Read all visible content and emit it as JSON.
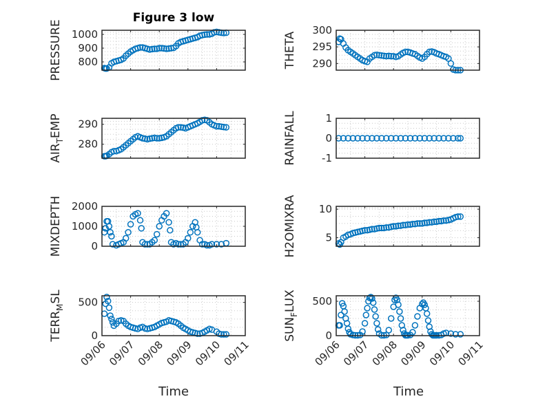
{
  "figure": {
    "title": "Figure 3 low",
    "xlabel": "Time"
  },
  "chart_data": [
    {
      "type": "scatter",
      "ylabel": "PRESSURE",
      "xlim": [
        "09/06 00:00",
        "09/11 00:00"
      ],
      "xticks": [
        "09/06",
        "09/07",
        "09/08",
        "09/09",
        "09/10",
        "09/11"
      ],
      "yticks": [
        "800",
        "900",
        "1000"
      ],
      "ylim": [
        740,
        1030
      ],
      "x": [
        "09/06 02:00",
        "09/06 03:00",
        "09/06 04:00",
        "09/06 06:00",
        "09/06 08:00",
        "09/06 10:00",
        "09/06 12:00",
        "09/06 14:00",
        "09/06 16:00",
        "09/06 18:00",
        "09/06 20:00",
        "09/06 22:00",
        "09/07 00:00",
        "09/07 02:00",
        "09/07 04:00",
        "09/07 06:00",
        "09/07 08:00",
        "09/07 10:00",
        "09/07 12:00",
        "09/07 14:00",
        "09/07 16:00",
        "09/07 18:00",
        "09/07 20:00",
        "09/07 22:00",
        "09/08 00:00",
        "09/08 02:00",
        "09/08 04:00",
        "09/08 06:00",
        "09/08 08:00",
        "09/08 10:00",
        "09/08 12:00",
        "09/08 14:00",
        "09/08 16:00",
        "09/08 18:00",
        "09/08 20:00",
        "09/08 22:00",
        "09/09 00:00",
        "09/09 02:00",
        "09/09 04:00",
        "09/09 06:00",
        "09/09 08:00",
        "09/09 10:00",
        "09/09 12:00",
        "09/09 14:00",
        "09/09 16:00",
        "09/09 18:00",
        "09/09 20:00",
        "09/09 22:00",
        "09/10 00:00",
        "09/10 02:00",
        "09/10 04:00",
        "09/10 06:00",
        "09/10 08:00"
      ],
      "y": [
        755,
        752,
        752,
        760,
        790,
        800,
        805,
        810,
        815,
        825,
        845,
        860,
        875,
        885,
        895,
        900,
        905,
        905,
        900,
        895,
        890,
        893,
        895,
        895,
        900,
        900,
        898,
        895,
        897,
        900,
        902,
        915,
        935,
        945,
        950,
        955,
        960,
        965,
        970,
        975,
        980,
        990,
        995,
        998,
        1000,
        1000,
        1005,
        1015,
        1018,
        1015,
        1012,
        1010,
        1012
      ]
    },
    {
      "type": "scatter",
      "ylabel": "THETA",
      "xlim": [
        "09/06 00:00",
        "09/11 00:00"
      ],
      "xticks": [
        "09/06",
        "09/07",
        "09/08",
        "09/09",
        "09/10",
        "09/11"
      ],
      "yticks": [
        "290",
        "295",
        "300"
      ],
      "ylim": [
        288,
        300
      ],
      "x": [
        "09/06 02:00",
        "09/06 03:00",
        "09/06 04:00",
        "09/06 06:00",
        "09/06 08:00",
        "09/06 10:00",
        "09/06 12:00",
        "09/06 14:00",
        "09/06 16:00",
        "09/06 18:00",
        "09/06 20:00",
        "09/06 22:00",
        "09/07 00:00",
        "09/07 02:00",
        "09/07 04:00",
        "09/07 06:00",
        "09/07 08:00",
        "09/07 10:00",
        "09/07 12:00",
        "09/07 14:00",
        "09/07 16:00",
        "09/07 18:00",
        "09/07 20:00",
        "09/07 22:00",
        "09/08 00:00",
        "09/08 02:00",
        "09/08 04:00",
        "09/08 06:00",
        "09/08 08:00",
        "09/08 10:00",
        "09/08 12:00",
        "09/08 14:00",
        "09/08 16:00",
        "09/08 18:00",
        "09/08 20:00",
        "09/08 22:00",
        "09/09 00:00",
        "09/09 02:00",
        "09/09 04:00",
        "09/09 06:00",
        "09/09 08:00",
        "09/09 10:00",
        "09/09 12:00",
        "09/09 14:00",
        "09/09 16:00",
        "09/09 18:00",
        "09/09 20:00",
        "09/09 22:00",
        "09/10 00:00",
        "09/10 02:00",
        "09/10 04:00",
        "09/10 06:00",
        "09/10 08:00"
      ],
      "y": [
        296.5,
        297.5,
        297.3,
        296.0,
        294.8,
        294.0,
        293.5,
        293.0,
        292.5,
        292.0,
        291.5,
        291.0,
        290.7,
        290.5,
        291.5,
        292.0,
        292.5,
        292.6,
        292.5,
        292.4,
        292.3,
        292.2,
        292.3,
        292.2,
        292.2,
        292.0,
        292.2,
        292.7,
        293.2,
        293.5,
        293.5,
        293.3,
        293.0,
        292.8,
        292.3,
        291.8,
        291.5,
        292.0,
        292.8,
        293.5,
        293.6,
        293.4,
        293.0,
        292.8,
        292.5,
        292.2,
        292.0,
        291.5,
        290.0,
        288.2,
        288.0,
        288.0,
        288.0
      ]
    },
    {
      "type": "scatter",
      "ylabel": "AIR_TEMP",
      "ylabel_main": "AIR",
      "ylabel_sub": "T",
      "ylabel_rest": "EMP",
      "xlim": [
        "09/06 00:00",
        "09/11 00:00"
      ],
      "xticks": [
        "09/06",
        "09/07",
        "09/08",
        "09/09",
        "09/10",
        "09/11"
      ],
      "yticks": [
        "280",
        "290"
      ],
      "ylim": [
        273,
        293
      ],
      "x": [
        "09/06 02:00",
        "09/06 03:00",
        "09/06 04:00",
        "09/06 06:00",
        "09/06 08:00",
        "09/06 10:00",
        "09/06 12:00",
        "09/06 14:00",
        "09/06 16:00",
        "09/06 18:00",
        "09/06 20:00",
        "09/06 22:00",
        "09/07 00:00",
        "09/07 02:00",
        "09/07 04:00",
        "09/07 06:00",
        "09/07 08:00",
        "09/07 10:00",
        "09/07 12:00",
        "09/07 14:00",
        "09/07 16:00",
        "09/07 18:00",
        "09/07 20:00",
        "09/07 22:00",
        "09/08 00:00",
        "09/08 02:00",
        "09/08 04:00",
        "09/08 06:00",
        "09/08 08:00",
        "09/08 10:00",
        "09/08 12:00",
        "09/08 14:00",
        "09/08 16:00",
        "09/08 18:00",
        "09/08 20:00",
        "09/08 22:00",
        "09/09 00:00",
        "09/09 02:00",
        "09/09 04:00",
        "09/09 06:00",
        "09/09 08:00",
        "09/09 10:00",
        "09/09 12:00",
        "09/09 14:00",
        "09/09 16:00",
        "09/09 18:00",
        "09/09 20:00",
        "09/09 22:00",
        "09/10 00:00",
        "09/10 02:00",
        "09/10 04:00",
        "09/10 06:00",
        "09/10 08:00"
      ],
      "y": [
        274,
        274,
        274.2,
        275,
        276,
        276.5,
        276.5,
        277,
        277.5,
        278.5,
        279.5,
        280.5,
        281.5,
        282.5,
        283.5,
        284,
        283.5,
        283,
        282.8,
        282.5,
        282.8,
        283,
        283.2,
        283,
        283,
        283.2,
        283.5,
        284,
        285,
        286,
        287,
        288,
        288.5,
        288.5,
        288.3,
        288,
        288.5,
        289,
        289.5,
        290,
        290.5,
        291.2,
        292,
        292.2,
        292,
        291,
        290,
        289.5,
        289,
        289,
        288.8,
        288.6,
        288.5
      ]
    },
    {
      "type": "scatter",
      "ylabel": "RAINFALL",
      "xlim": [
        "09/06 00:00",
        "09/11 00:00"
      ],
      "xticks": [
        "09/06",
        "09/07",
        "09/08",
        "09/09",
        "09/10",
        "09/11"
      ],
      "yticks": [
        "-1",
        "0",
        "1"
      ],
      "ylim": [
        -1,
        1
      ],
      "x": [
        "09/06 02:00",
        "09/06 06:00",
        "09/06 10:00",
        "09/06 14:00",
        "09/06 18:00",
        "09/06 22:00",
        "09/07 02:00",
        "09/07 06:00",
        "09/07 10:00",
        "09/07 14:00",
        "09/07 18:00",
        "09/07 22:00",
        "09/08 02:00",
        "09/08 06:00",
        "09/08 10:00",
        "09/08 14:00",
        "09/08 18:00",
        "09/08 22:00",
        "09/09 02:00",
        "09/09 06:00",
        "09/09 10:00",
        "09/09 14:00",
        "09/09 18:00",
        "09/09 22:00",
        "09/10 02:00",
        "09/10 06:00",
        "09/10 08:00"
      ],
      "y": [
        0,
        0,
        0,
        0,
        0,
        0,
        0,
        0,
        0,
        0,
        0,
        0,
        0,
        0,
        0,
        0,
        0,
        0,
        0,
        0,
        0,
        0,
        0,
        0,
        0,
        0,
        0
      ]
    },
    {
      "type": "scatter",
      "ylabel": "MIXDEPTH",
      "xlim": [
        "09/06 00:00",
        "09/11 00:00"
      ],
      "xticks": [
        "09/06",
        "09/07",
        "09/08",
        "09/09",
        "09/10",
        "09/11"
      ],
      "yticks": [
        "0",
        "1000",
        "2000"
      ],
      "ylim": [
        0,
        2000
      ],
      "x": [
        "09/06 02:00",
        "09/06 03:00",
        "09/06 04:00",
        "09/06 05:00",
        "09/06 06:00",
        "09/06 07:00",
        "09/06 08:00",
        "09/06 09:00",
        "09/06 12:00",
        "09/06 14:00",
        "09/06 16:00",
        "09/06 18:00",
        "09/06 20:00",
        "09/06 22:00",
        "09/07 00:00",
        "09/07 02:00",
        "09/07 04:00",
        "09/07 06:00",
        "09/07 08:00",
        "09/07 09:00",
        "09/07 10:00",
        "09/07 12:00",
        "09/07 14:00",
        "09/07 16:00",
        "09/07 18:00",
        "09/07 20:00",
        "09/07 22:00",
        "09/08 00:00",
        "09/08 02:00",
        "09/08 04:00",
        "09/08 06:00",
        "09/08 08:00",
        "09/08 09:00",
        "09/08 10:00",
        "09/08 12:00",
        "09/08 14:00",
        "09/08 16:00",
        "09/08 18:00",
        "09/08 20:00",
        "09/08 22:00",
        "09/09 00:00",
        "09/09 02:00",
        "09/09 04:00",
        "09/09 06:00",
        "09/09 07:00",
        "09/09 08:00",
        "09/09 10:00",
        "09/09 12:00",
        "09/09 14:00",
        "09/09 16:00",
        "09/09 18:00",
        "09/09 20:00",
        "09/10 00:00",
        "09/10 04:00",
        "09/10 08:00"
      ],
      "y": [
        700,
        900,
        1250,
        1250,
        1000,
        700,
        500,
        100,
        50,
        100,
        150,
        200,
        400,
        700,
        1100,
        1500,
        1600,
        1650,
        1300,
        900,
        200,
        100,
        100,
        100,
        200,
        300,
        600,
        1000,
        1300,
        1500,
        1650,
        1200,
        800,
        200,
        100,
        150,
        100,
        100,
        100,
        200,
        400,
        700,
        1000,
        1200,
        950,
        700,
        300,
        100,
        100,
        50,
        50,
        100,
        100,
        100,
        150
      ]
    },
    {
      "type": "scatter",
      "ylabel": "H2OMIXRA",
      "xlim": [
        "09/06 00:00",
        "09/11 00:00"
      ],
      "xticks": [
        "09/06",
        "09/07",
        "09/08",
        "09/09",
        "09/10",
        "09/11"
      ],
      "yticks": [
        "5",
        "10"
      ],
      "ylim": [
        3.5,
        10.5
      ],
      "x": [
        "09/06 02:00",
        "09/06 03:00",
        "09/06 04:00",
        "09/06 06:00",
        "09/06 08:00",
        "09/06 10:00",
        "09/06 12:00",
        "09/06 14:00",
        "09/06 16:00",
        "09/06 18:00",
        "09/06 20:00",
        "09/06 22:00",
        "09/07 00:00",
        "09/07 02:00",
        "09/07 04:00",
        "09/07 06:00",
        "09/07 08:00",
        "09/07 10:00",
        "09/07 12:00",
        "09/07 14:00",
        "09/07 16:00",
        "09/07 18:00",
        "09/07 20:00",
        "09/07 22:00",
        "09/08 00:00",
        "09/08 02:00",
        "09/08 04:00",
        "09/08 06:00",
        "09/08 08:00",
        "09/08 10:00",
        "09/08 12:00",
        "09/08 14:00",
        "09/08 16:00",
        "09/08 18:00",
        "09/08 20:00",
        "09/08 22:00",
        "09/09 00:00",
        "09/09 02:00",
        "09/09 04:00",
        "09/09 06:00",
        "09/09 08:00",
        "09/09 10:00",
        "09/09 12:00",
        "09/09 14:00",
        "09/09 16:00",
        "09/09 18:00",
        "09/09 20:00",
        "09/09 22:00",
        "09/10 00:00",
        "09/10 02:00",
        "09/10 04:00",
        "09/10 06:00",
        "09/10 08:00"
      ],
      "y": [
        4.0,
        3.8,
        4.2,
        5.0,
        5.2,
        5.5,
        5.6,
        5.8,
        5.9,
        6.0,
        6.1,
        6.2,
        6.3,
        6.3,
        6.4,
        6.5,
        6.5,
        6.6,
        6.7,
        6.7,
        6.7,
        6.8,
        6.8,
        6.9,
        7.0,
        7.0,
        7.1,
        7.1,
        7.2,
        7.2,
        7.3,
        7.3,
        7.4,
        7.4,
        7.5,
        7.5,
        7.5,
        7.6,
        7.6,
        7.7,
        7.7,
        7.8,
        7.8,
        7.9,
        7.9,
        8.0,
        8.0,
        8.1,
        8.2,
        8.4,
        8.6,
        8.7,
        8.7
      ]
    },
    {
      "type": "scatter",
      "ylabel": "TERR_MSL",
      "ylabel_main": "TERR",
      "ylabel_sub": "M",
      "ylabel_rest": "SL",
      "xlim": [
        "09/06 00:00",
        "09/11 00:00"
      ],
      "xticks": [
        "09/06",
        "09/07",
        "09/08",
        "09/09",
        "09/10",
        "09/11"
      ],
      "yticks": [
        "0",
        "500"
      ],
      "ylim": [
        0,
        600
      ],
      "x": [
        "09/06 02:00",
        "09/06 03:00",
        "09/06 04:00",
        "09/06 05:00",
        "09/06 06:00",
        "09/06 07:00",
        "09/06 08:00",
        "09/06 09:00",
        "09/06 10:00",
        "09/06 12:00",
        "09/06 14:00",
        "09/06 16:00",
        "09/06 18:00",
        "09/06 20:00",
        "09/06 22:00",
        "09/07 00:00",
        "09/07 02:00",
        "09/07 04:00",
        "09/07 06:00",
        "09/07 08:00",
        "09/07 10:00",
        "09/07 12:00",
        "09/07 14:00",
        "09/07 16:00",
        "09/07 18:00",
        "09/07 20:00",
        "09/07 22:00",
        "09/08 00:00",
        "09/08 02:00",
        "09/08 04:00",
        "09/08 06:00",
        "09/08 08:00",
        "09/08 10:00",
        "09/08 12:00",
        "09/08 14:00",
        "09/08 16:00",
        "09/08 18:00",
        "09/08 20:00",
        "09/08 22:00",
        "09/09 00:00",
        "09/09 02:00",
        "09/09 04:00",
        "09/09 06:00",
        "09/09 08:00",
        "09/09 10:00",
        "09/09 12:00",
        "09/09 14:00",
        "09/09 16:00",
        "09/09 18:00",
        "09/09 20:00",
        "09/10 00:00",
        "09/10 02:00",
        "09/10 04:00",
        "09/10 06:00",
        "09/10 08:00"
      ],
      "y": [
        330,
        480,
        580,
        520,
        420,
        300,
        250,
        200,
        150,
        180,
        220,
        230,
        220,
        180,
        150,
        130,
        120,
        110,
        100,
        120,
        130,
        110,
        100,
        110,
        120,
        130,
        150,
        170,
        190,
        200,
        210,
        230,
        220,
        210,
        200,
        180,
        150,
        120,
        100,
        80,
        60,
        50,
        40,
        30,
        30,
        40,
        60,
        80,
        100,
        90,
        60,
        30,
        20,
        20,
        20
      ]
    },
    {
      "type": "scatter",
      "ylabel": "SUN_FLUX",
      "ylabel_main": "SUN",
      "ylabel_sub": "F",
      "ylabel_rest": "LUX",
      "xlim": [
        "09/06 00:00",
        "09/11 00:00"
      ],
      "xticks": [
        "09/06",
        "09/07",
        "09/08",
        "09/09",
        "09/10",
        "09/11"
      ],
      "yticks": [
        "0",
        "500"
      ],
      "ylim": [
        0,
        580
      ],
      "x": [
        "09/06 02:00",
        "09/06 03:00",
        "09/06 04:00",
        "09/06 05:00",
        "09/06 06:00",
        "09/06 07:00",
        "09/06 08:00",
        "09/06 09:00",
        "09/06 10:00",
        "09/06 11:00",
        "09/06 12:00",
        "09/06 14:00",
        "09/06 16:00",
        "09/06 18:00",
        "09/06 20:00",
        "09/06 22:00",
        "09/07 00:00",
        "09/07 01:00",
        "09/07 02:00",
        "09/07 03:00",
        "09/07 04:00",
        "09/07 05:00",
        "09/07 06:00",
        "09/07 07:00",
        "09/07 08:00",
        "09/07 09:00",
        "09/07 10:00",
        "09/07 11:00",
        "09/07 12:00",
        "09/07 14:00",
        "09/07 16:00",
        "09/07 18:00",
        "09/07 20:00",
        "09/07 22:00",
        "09/08 00:00",
        "09/08 01:00",
        "09/08 02:00",
        "09/08 03:00",
        "09/08 04:00",
        "09/08 05:00",
        "09/08 06:00",
        "09/08 07:00",
        "09/08 08:00",
        "09/08 09:00",
        "09/08 10:00",
        "09/08 11:00",
        "09/08 12:00",
        "09/08 14:00",
        "09/08 16:00",
        "09/08 18:00",
        "09/08 20:00",
        "09/08 22:00",
        "09/09 00:00",
        "09/09 01:00",
        "09/09 02:00",
        "09/09 03:00",
        "09/09 04:00",
        "09/09 05:00",
        "09/09 06:00",
        "09/09 07:00",
        "09/09 08:00",
        "09/09 09:00",
        "09/09 10:00",
        "09/09 11:00",
        "09/09 12:00",
        "09/09 14:00",
        "09/09 16:00",
        "09/09 18:00",
        "09/09 20:00",
        "09/10 00:00",
        "09/10 04:00",
        "09/10 08:00"
      ],
      "y": [
        150,
        150,
        300,
        470,
        430,
        350,
        250,
        180,
        100,
        50,
        20,
        10,
        5,
        5,
        10,
        60,
        180,
        300,
        400,
        500,
        550,
        560,
        540,
        480,
        380,
        280,
        180,
        90,
        30,
        5,
        5,
        10,
        80,
        250,
        420,
        520,
        550,
        520,
        450,
        350,
        250,
        150,
        80,
        30,
        5,
        5,
        5,
        10,
        50,
        150,
        280,
        400,
        460,
        480,
        450,
        400,
        320,
        220,
        130,
        60,
        20,
        5,
        5,
        5,
        5,
        5,
        10,
        30,
        40,
        30,
        20,
        20
      ]
    }
  ]
}
